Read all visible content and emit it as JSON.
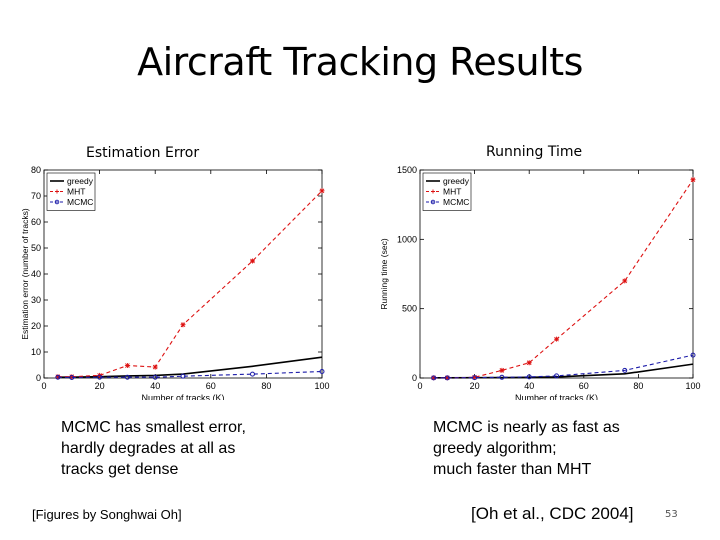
{
  "slide": {
    "title": "Aircraft Tracking Results",
    "left_note": "MCMC has smallest error,\nhardly degrades at all as\ntracks get dense",
    "right_note": "MCMC is nearly as fast as\ngreedy algorithm;\nmuch faster than MHT",
    "credit": "[Figures by Songhwai Oh]",
    "citation": "[Oh et al., CDC 2004]",
    "page_number": "53"
  },
  "colors": {
    "greedy": "#000000",
    "MHT": "#dd1111",
    "MCMC": "#1a1aa8"
  },
  "chart_data": [
    {
      "type": "line",
      "title": "Estimation Error",
      "xlabel": "Number of tracks (K)",
      "ylabel": "Estimation error (number of tracks)",
      "xlim": [
        0,
        100
      ],
      "ylim": [
        0,
        80
      ],
      "xticks": [
        "0",
        "20",
        "40",
        "60",
        "80",
        "100"
      ],
      "yticks": [
        "0",
        "10",
        "20",
        "30",
        "40",
        "50",
        "60",
        "70",
        "80"
      ],
      "grid": false,
      "legend_position": "top-left",
      "series": [
        {
          "name": "greedy",
          "x": [
            5,
            10,
            20,
            30,
            40,
            50,
            75,
            100
          ],
          "y": [
            0.3,
            0.3,
            0.5,
            0.8,
            1.0,
            1.5,
            4.5,
            8.0
          ]
        },
        {
          "name": "MHT",
          "x": [
            5,
            10,
            20,
            30,
            40,
            50,
            75,
            100
          ],
          "y": [
            0.5,
            0.5,
            1.0,
            4.8,
            4.2,
            20.5,
            45.0,
            72.0
          ]
        },
        {
          "name": "MCMC",
          "x": [
            5,
            10,
            20,
            30,
            40,
            50,
            75,
            100
          ],
          "y": [
            0.3,
            0.2,
            0.3,
            0.3,
            0.3,
            0.7,
            1.5,
            2.5
          ]
        }
      ]
    },
    {
      "type": "line",
      "title": "Running Time",
      "xlabel": "Number of tracks (K)",
      "ylabel": "Running time (sec)",
      "xlim": [
        0,
        100
      ],
      "ylim": [
        0,
        1500
      ],
      "xticks": [
        "0",
        "20",
        "40",
        "60",
        "80",
        "100"
      ],
      "yticks": [
        "0",
        "500",
        "1000",
        "1500"
      ],
      "grid": false,
      "legend_position": "top-left",
      "series": [
        {
          "name": "greedy",
          "x": [
            5,
            10,
            20,
            30,
            40,
            50,
            75,
            100
          ],
          "y": [
            1,
            1,
            2,
            3,
            5,
            8,
            30,
            100
          ]
        },
        {
          "name": "MHT",
          "x": [
            5,
            10,
            20,
            30,
            40,
            50,
            75,
            100
          ],
          "y": [
            1,
            1,
            5,
            55,
            110,
            280,
            700,
            1430
          ]
        },
        {
          "name": "MCMC",
          "x": [
            5,
            10,
            20,
            30,
            40,
            50,
            75,
            100
          ],
          "y": [
            1,
            1,
            3,
            5,
            8,
            15,
            55,
            165
          ]
        }
      ]
    }
  ]
}
